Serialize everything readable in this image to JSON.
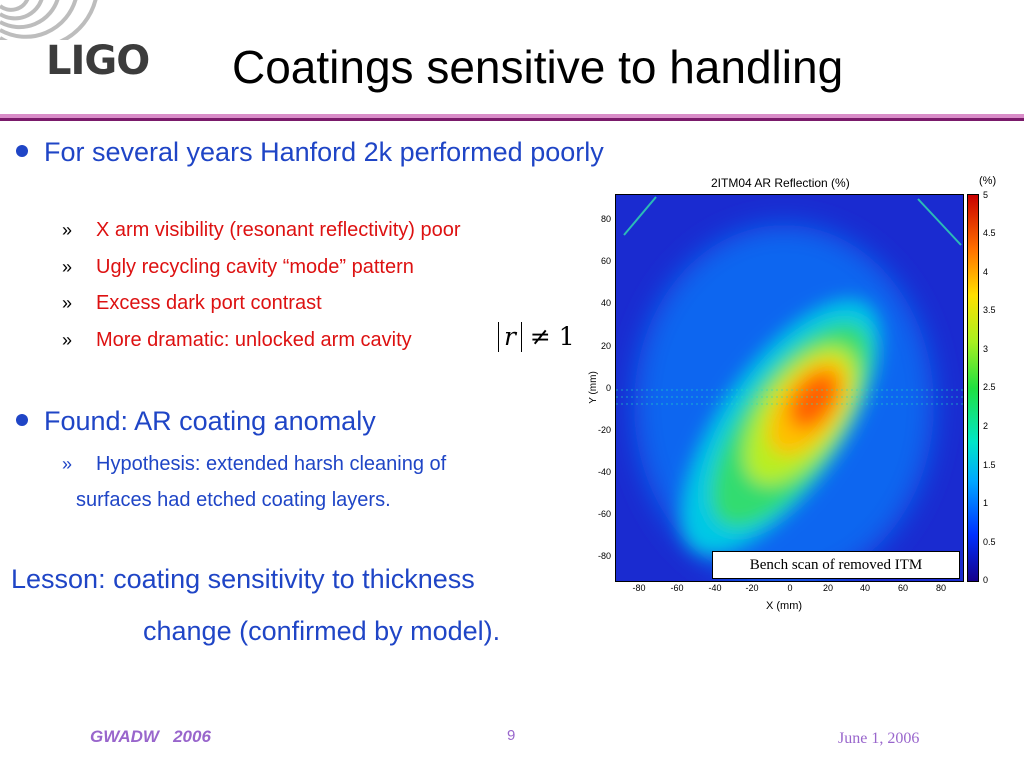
{
  "slide": {
    "logo_text": "LIGO",
    "title": "Coatings sensitive to handling",
    "bullets": [
      {
        "text": "For several years Hanford 2k performed poorly",
        "subs": [
          "X arm visibility (resonant reflectivity) poor",
          "Ugly recycling cavity “mode” pattern",
          "Excess dark port contrast",
          "More dramatic: unlocked arm cavity"
        ]
      },
      {
        "text": "Found: AR coating anomaly",
        "subs": [
          "Hypothesis: extended harsh cleaning of"
        ],
        "continuation": "surfaces had etched coating layers."
      }
    ],
    "sub_marker": "»",
    "equation": {
      "variable": "r",
      "relation": "≠ 1"
    },
    "lesson": {
      "line1": "Lesson: coating sensitivity to thickness",
      "line2": "change (confirmed by model)."
    }
  },
  "figure": {
    "title": "2ITM04 AR Reflection (%)",
    "colorbar_unit": "(%)",
    "xlabel": "X (mm)",
    "ylabel": "Y (mm)",
    "xticks": [
      "-80",
      "-60",
      "-40",
      "-20",
      "0",
      "20",
      "40",
      "60",
      "80"
    ],
    "yticks": [
      "80",
      "60",
      "40",
      "20",
      "0",
      "-20",
      "-40",
      "-60",
      "-80"
    ],
    "colorbar_ticks": [
      "5",
      "4.5",
      "4",
      "3.5",
      "3",
      "2.5",
      "2",
      "1.5",
      "1",
      "0.5",
      "0"
    ],
    "caption": "Bench scan of removed ITM"
  },
  "footer": {
    "left": "GWADW   2006",
    "page": "9",
    "date": "June 1, 2006"
  },
  "colors": {
    "blue_text": "#1f45c6",
    "red_text": "#dd1111",
    "rule_dark": "#7a1a6a",
    "rule_light": "#d98cc8",
    "footer": "#9966cc"
  }
}
